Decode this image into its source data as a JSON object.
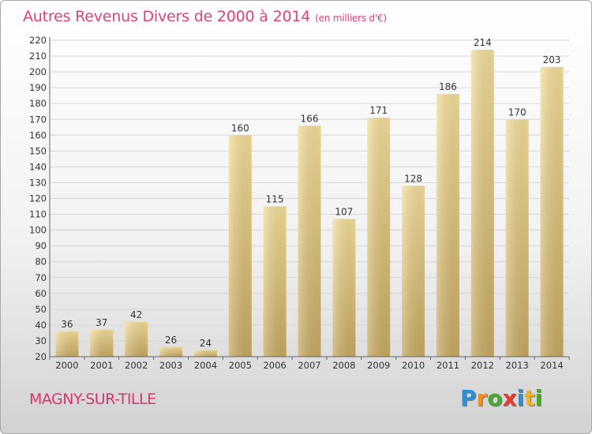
{
  "title": "Autres Revenus Divers de 2000 à 2014",
  "title_unit": "(en milliers d'€)",
  "commune": "MAGNY-SUR-TILLE",
  "logo": {
    "text": "Proxiti",
    "letters": [
      {
        "ch": "P",
        "color": "#2b8fd6"
      },
      {
        "ch": "r",
        "color": "#f28c1b"
      },
      {
        "ch": "o",
        "color": "#4aaa2f"
      },
      {
        "ch": "x",
        "color": "#e63d2f"
      },
      {
        "ch": "i",
        "color": "#2b8fd6"
      },
      {
        "ch": "t",
        "color": "#f2b51b"
      },
      {
        "ch": "i",
        "color": "#4aaa2f"
      }
    ]
  },
  "colors": {
    "title": "#e0407a",
    "bar_light": "#f5df9a",
    "bar_dark": "#c8aa62",
    "grid": "#d7d7d7"
  },
  "chart_data": {
    "type": "bar",
    "categories": [
      "2000",
      "2001",
      "2002",
      "2003",
      "2004",
      "2005",
      "2006",
      "2007",
      "2008",
      "2009",
      "2010",
      "2011",
      "2012",
      "2013",
      "2014"
    ],
    "values": [
      36,
      37,
      42,
      26,
      24,
      160,
      115,
      166,
      107,
      171,
      128,
      186,
      214,
      170,
      203
    ],
    "ylim": [
      20,
      220
    ],
    "yticks": [
      20,
      30,
      40,
      50,
      60,
      70,
      80,
      90,
      100,
      110,
      120,
      130,
      140,
      150,
      160,
      170,
      180,
      190,
      200,
      210,
      220
    ],
    "grid": true,
    "data_labels": true
  }
}
